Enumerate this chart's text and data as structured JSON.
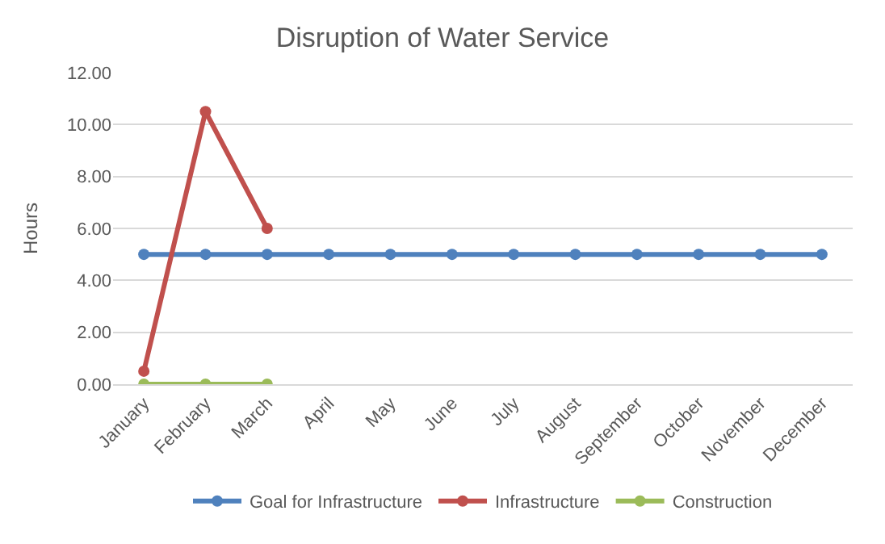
{
  "chart_data": {
    "type": "line",
    "title": "Disruption of Water Service",
    "ylabel": "Hours",
    "categories": [
      "January",
      "February",
      "March",
      "April",
      "May",
      "June",
      "July",
      "August",
      "September",
      "October",
      "November",
      "December"
    ],
    "series": [
      {
        "name": "Goal for Infrastructure",
        "color": "#4f81bd",
        "values": [
          5,
          5,
          5,
          5,
          5,
          5,
          5,
          5,
          5,
          5,
          5,
          5
        ]
      },
      {
        "name": "Infrastructure",
        "color": "#c0504d",
        "values": [
          0.5,
          10.5,
          6.0,
          null,
          null,
          null,
          null,
          null,
          null,
          null,
          null,
          null
        ]
      },
      {
        "name": "Construction",
        "color": "#9bbb59",
        "values": [
          0,
          0,
          0,
          null,
          null,
          null,
          null,
          null,
          null,
          null,
          null,
          null
        ]
      }
    ],
    "ylim": [
      0,
      12
    ],
    "yticks": [
      {
        "value": 0,
        "label": "0.00"
      },
      {
        "value": 2,
        "label": "2.00"
      },
      {
        "value": 4,
        "label": "4.00"
      },
      {
        "value": 6,
        "label": "6.00"
      },
      {
        "value": 8,
        "label": "8.00"
      },
      {
        "value": 10,
        "label": "10.00"
      },
      {
        "value": 12,
        "label": "12.00"
      }
    ],
    "grid": "y",
    "legend": "bottom",
    "marker": "circle",
    "line_style": "solid"
  }
}
